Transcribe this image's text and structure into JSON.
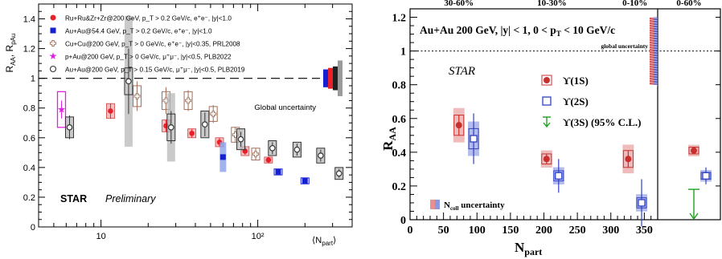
{
  "chart_data": [
    {
      "type": "scatter",
      "title": "",
      "xlabel": "⟨N_part⟩",
      "ylabel": "R_AA, R_pAu",
      "xscale": "log",
      "xlim": [
        4,
        400
      ],
      "ylim": [
        0,
        1.5
      ],
      "xticks": [
        "10",
        "10²"
      ],
      "yticks": [
        "0",
        "0.2",
        "0.4",
        "0.6",
        "0.8",
        "1",
        "1.2",
        "1.4"
      ],
      "grid": false,
      "legend_position": "top-left",
      "global_uncertainty_label": "Global uncertainty",
      "global_uncertainty_level": 1.0,
      "annotations": {
        "experiment": "STAR",
        "status": "Preliminary"
      },
      "series": [
        {
          "name": "Ru+Ru&Zr+Zr@200 GeV, p_T > 0.2 GeV/c, e⁺e⁻, |y|<1.0",
          "marker": "filled-circle",
          "color": "#e8202a",
          "points": [
            {
              "x": 11.5,
              "y": 0.78,
              "stat": 0.05,
              "sys": 0.05
            },
            {
              "x": 26,
              "y": 0.68,
              "stat": 0.04,
              "sys": 0.04
            },
            {
              "x": 38,
              "y": 0.63,
              "stat": 0.03,
              "sys": 0.03
            },
            {
              "x": 57,
              "y": 0.57,
              "stat": 0.03,
              "sys": 0.03
            },
            {
              "x": 83,
              "y": 0.51,
              "stat": 0.025,
              "sys": 0.03
            },
            {
              "x": 117,
              "y": 0.45,
              "stat": 0.02,
              "sys": 0.02
            }
          ]
        },
        {
          "name": "Au+Au@54.4 GeV, p_T > 0.2 GeV/c, e⁺e⁻, |y|<1.0",
          "marker": "filled-square",
          "color": "#1520d0",
          "points": [
            {
              "x": 60,
              "y": 0.47,
              "stat": 0.06,
              "sys": 0.1
            },
            {
              "x": 135,
              "y": 0.37,
              "stat": 0.02,
              "sys": 0.02
            },
            {
              "x": 200,
              "y": 0.31,
              "stat": 0.02,
              "sys": 0.02
            }
          ]
        },
        {
          "name": "Cu+Cu@200 GeV, p_T > 0 GeV/c, e⁺e⁻, |y|<0.35, PRL2008",
          "marker": "open-cross",
          "color": "#a0705a",
          "points": [
            {
              "x": 17,
              "y": 0.88,
              "stat": 0.1,
              "sys": 0.07
            },
            {
              "x": 26,
              "y": 0.85,
              "stat": 0.09,
              "sys": 0.06
            },
            {
              "x": 36,
              "y": 0.85,
              "stat": 0.07,
              "sys": 0.06
            },
            {
              "x": 52,
              "y": 0.76,
              "stat": 0.06,
              "sys": 0.05
            },
            {
              "x": 72,
              "y": 0.62,
              "stat": 0.05,
              "sys": 0.05
            },
            {
              "x": 97,
              "y": 0.49,
              "stat": 0.04,
              "sys": 0.04
            }
          ]
        },
        {
          "name": "p+Au@200 GeV, p_T > 0 GeV/c, μ⁺μ⁻, |y|<0.5, PLB2022",
          "marker": "star",
          "color": "#e020e0",
          "points": [
            {
              "x": 5.6,
              "y": 0.79,
              "stat": 0.06,
              "sys": 0.12
            }
          ]
        },
        {
          "name": "Au+Au@200 GeV, p_T > 0.15 GeV/c, μ⁺μ⁻, |y|<0.5, PLB2019",
          "marker": "open-circle",
          "color": "#606060",
          "points": [
            {
              "x": 6.3,
              "y": 0.67,
              "stat": 0.08,
              "sys": 0.07
            },
            {
              "x": 15,
              "y": 0.98,
              "stat": 0.22,
              "sys": 0.44
            },
            {
              "x": 28,
              "y": 0.67,
              "stat": 0.11,
              "sys": 0.23
            },
            {
              "x": 46,
              "y": 0.69,
              "stat": 0.08,
              "sys": 0.09
            },
            {
              "x": 78,
              "y": 0.59,
              "stat": 0.05,
              "sys": 0.07
            },
            {
              "x": 124,
              "y": 0.53,
              "stat": 0.04,
              "sys": 0.05
            },
            {
              "x": 178,
              "y": 0.52,
              "stat": 0.04,
              "sys": 0.05
            },
            {
              "x": 252,
              "y": 0.48,
              "stat": 0.04,
              "sys": 0.05
            },
            {
              "x": 330,
              "y": 0.36,
              "stat": 0.03,
              "sys": 0.04
            }
          ]
        }
      ],
      "global_uncertainty_boxes": [
        {
          "color": "#1520d0",
          "half_height": 0.06
        },
        {
          "color": "#e8202a",
          "half_height": 0.07
        },
        {
          "color": "#202020",
          "half_height": 0.08
        },
        {
          "color": "#9a9a9a",
          "half_height": 0.12
        }
      ]
    },
    {
      "type": "scatter",
      "title": "Au+Au 200 GeV, |y| < 1, 0 < p_T < 10 GeV/c",
      "xlabel": "N_part",
      "ylabel": "R_AA",
      "xlim": [
        0,
        370
      ],
      "ylim": [
        0,
        1.25
      ],
      "xticks": [
        "0",
        "50",
        "100",
        "150",
        "200",
        "250",
        "300",
        "350"
      ],
      "yticks": [
        "0",
        "0.2",
        "0.4",
        "0.6",
        "0.8",
        "1",
        "1.2"
      ],
      "grid": false,
      "centrality_labels": [
        "30-60%",
        "10-30%",
        "0-10%",
        "0-60%"
      ],
      "global_uncertainty_label": "global uncertainty",
      "annotation": "STAR",
      "ncoll_label": "N_coll uncertainty",
      "legend_position": "middle-right",
      "series": [
        {
          "name": "ϒ(1S)",
          "marker": "filled-circle",
          "color": "#c83030",
          "points": [
            {
              "x": 73,
              "y": 0.56,
              "stat": 0.06,
              "sys": 0.06
            },
            {
              "x": 204,
              "y": 0.36,
              "stat": 0.03,
              "sys": 0.03
            },
            {
              "x": 326,
              "y": 0.36,
              "stat": 0.05,
              "sys": 0.05
            }
          ],
          "integrated": {
            "label": "0-60%",
            "y": 0.41,
            "stat": 0.02,
            "sys": 0.02
          }
        },
        {
          "name": "ϒ(2S)",
          "marker": "open-square",
          "color": "#3040c0",
          "points": [
            {
              "x": 95,
              "y": 0.48,
              "stat": 0.15,
              "sys": 0.06
            },
            {
              "x": 222,
              "y": 0.26,
              "stat": 0.1,
              "sys": 0.03
            },
            {
              "x": 346,
              "y": 0.1,
              "stat": 0.14,
              "sys": 0.03
            }
          ],
          "integrated": {
            "label": "0-60%",
            "y": 0.26,
            "stat": 0.05,
            "sys": 0.02
          }
        },
        {
          "name": "ϒ(3S) (95% C.L.)",
          "marker": "down-arrow",
          "color": "#20a020",
          "points": [],
          "integrated": {
            "label": "0-60%",
            "y": 0.18,
            "upper_limit": true
          }
        }
      ]
    }
  ]
}
